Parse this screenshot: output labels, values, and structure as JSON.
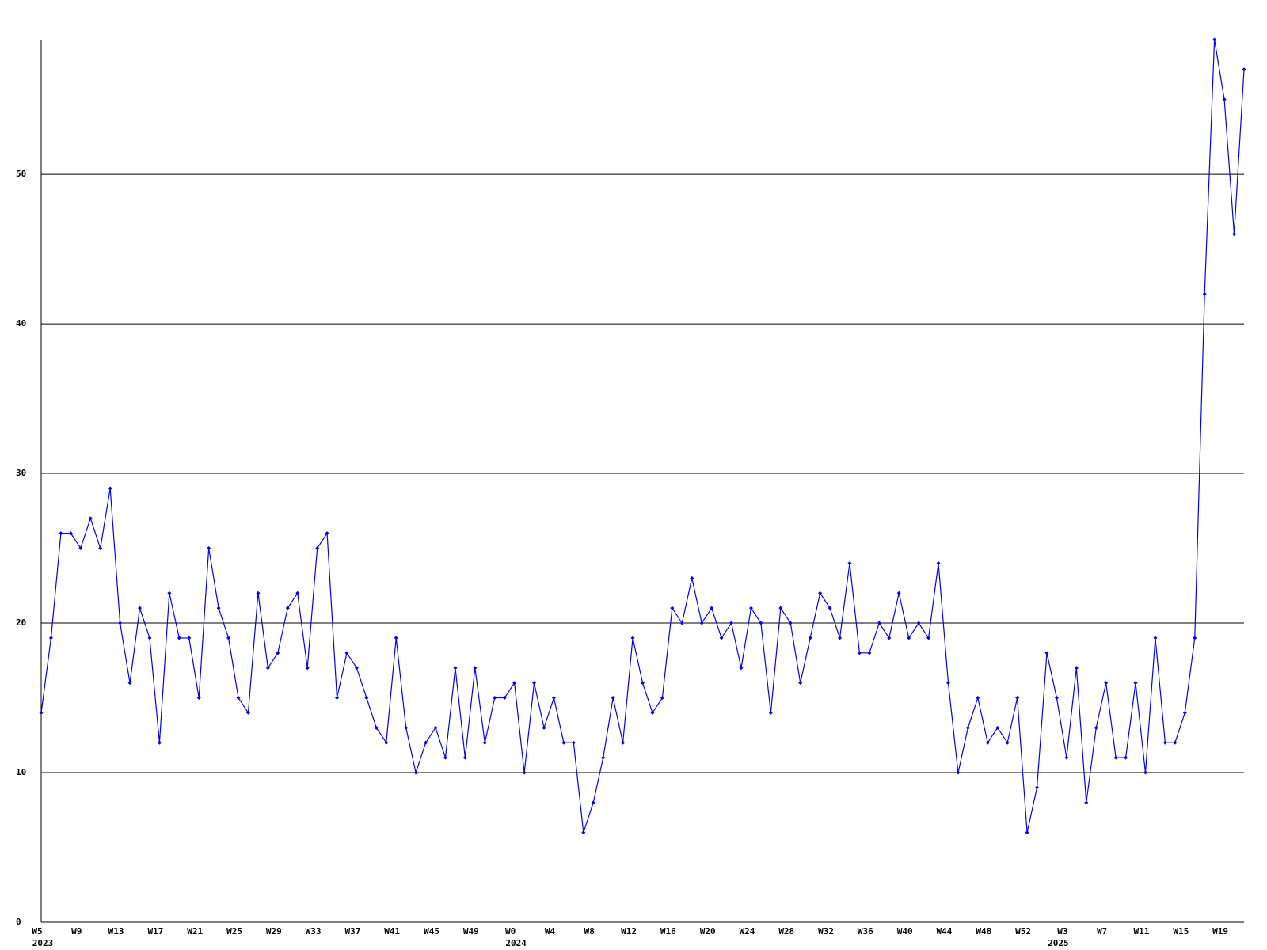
{
  "chart_data": {
    "type": "line",
    "categories": [
      "W5",
      null,
      null,
      null,
      "W9",
      null,
      null,
      null,
      "W13",
      null,
      null,
      null,
      "W17",
      null,
      null,
      null,
      "W21",
      null,
      null,
      null,
      "W25",
      null,
      null,
      null,
      "W29",
      null,
      null,
      null,
      "W33",
      null,
      null,
      null,
      "W37",
      null,
      null,
      null,
      "W41",
      null,
      null,
      null,
      "W45",
      null,
      null,
      null,
      "W49",
      null,
      null,
      null,
      "W0",
      null,
      null,
      null,
      "W4",
      null,
      null,
      null,
      "W8",
      null,
      null,
      null,
      "W12",
      null,
      null,
      null,
      "W16",
      null,
      null,
      null,
      "W20",
      null,
      null,
      null,
      "W24",
      null,
      null,
      null,
      "W28",
      null,
      null,
      null,
      "W32",
      null,
      null,
      null,
      "W36",
      null,
      null,
      null,
      "W40",
      null,
      null,
      null,
      "W44",
      null,
      null,
      null,
      "W48",
      null,
      null,
      null,
      "W52",
      null,
      null,
      null,
      "W3",
      null,
      null,
      null,
      "W7",
      null,
      null,
      null,
      "W11",
      null,
      null,
      null,
      "W15",
      null,
      null,
      null,
      "W19",
      null,
      null
    ],
    "x_group_labels": [
      "2023",
      null,
      null,
      null,
      null,
      null,
      null,
      null,
      null,
      null,
      null,
      null,
      null,
      null,
      null,
      null,
      null,
      null,
      null,
      null,
      null,
      null,
      null,
      null,
      null,
      null,
      null,
      null,
      null,
      null,
      null,
      null,
      null,
      null,
      null,
      null,
      null,
      null,
      null,
      null,
      null,
      null,
      null,
      null,
      null,
      null,
      null,
      null,
      "2024",
      null,
      null,
      null,
      null,
      null,
      null,
      null,
      null,
      null,
      null,
      null,
      null,
      null,
      null,
      null,
      null,
      null,
      null,
      null,
      null,
      null,
      null,
      null,
      null,
      null,
      null,
      null,
      null,
      null,
      null,
      null,
      null,
      null,
      null,
      null,
      null,
      null,
      null,
      null,
      null,
      null,
      null,
      null,
      null,
      null,
      null,
      null,
      null,
      null,
      null,
      null,
      null,
      null,
      null,
      "2025",
      null,
      null,
      null,
      null,
      null,
      null,
      null,
      null,
      null,
      null,
      null,
      null,
      null,
      null,
      null,
      null,
      null,
      null,
      null,
      null,
      null
    ],
    "values": [
      14,
      19,
      26,
      26,
      25,
      27,
      25,
      29,
      20,
      16,
      21,
      19,
      12,
      22,
      19,
      19,
      15,
      25,
      21,
      19,
      15,
      14,
      22,
      17,
      18,
      21,
      22,
      17,
      25,
      26,
      15,
      18,
      17,
      15,
      13,
      12,
      19,
      13,
      10,
      12,
      13,
      11,
      17,
      11,
      17,
      12,
      15,
      15,
      16,
      10,
      16,
      13,
      15,
      12,
      12,
      6,
      8,
      11,
      15,
      12,
      19,
      16,
      14,
      15,
      21,
      20,
      23,
      20,
      21,
      19,
      20,
      17,
      21,
      20,
      14,
      21,
      20,
      16,
      19,
      22,
      21,
      19,
      24,
      18,
      18,
      20,
      19,
      22,
      19,
      20,
      19,
      24,
      16,
      10,
      13,
      15,
      12,
      13,
      12,
      15,
      6,
      9,
      18,
      15,
      11,
      17,
      8,
      13,
      16,
      11,
      11,
      16,
      10,
      19,
      12,
      12,
      14,
      19,
      42,
      59,
      55,
      46,
      57
    ],
    "color": "#0000ff",
    "ylim": [
      0,
      59
    ],
    "yticks": [
      0,
      10,
      20,
      30,
      40,
      50
    ],
    "grid": true
  }
}
